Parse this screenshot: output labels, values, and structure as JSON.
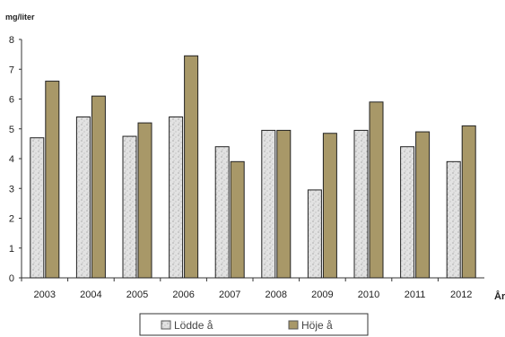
{
  "chart_data": {
    "type": "bar",
    "title": "",
    "ylabel": "mg/liter",
    "xlabel": "År",
    "ylim": [
      0,
      8
    ],
    "yticks": [
      0,
      1,
      2,
      3,
      4,
      5,
      6,
      7,
      8
    ],
    "grid": false,
    "legend_position": "bottom",
    "categories": [
      "2003",
      "2004",
      "2005",
      "2006",
      "2007",
      "2008",
      "2009",
      "2010",
      "2011",
      "2012"
    ],
    "series": [
      {
        "name": "Lödde å",
        "color": "#d4d4d4",
        "values": [
          4.7,
          5.4,
          4.75,
          5.4,
          4.4,
          4.95,
          2.95,
          4.95,
          4.4,
          3.9
        ]
      },
      {
        "name": "Höje å",
        "color": "#a89868",
        "values": [
          6.6,
          6.1,
          5.2,
          7.45,
          3.9,
          4.95,
          4.85,
          5.9,
          4.9,
          5.1
        ]
      }
    ]
  }
}
